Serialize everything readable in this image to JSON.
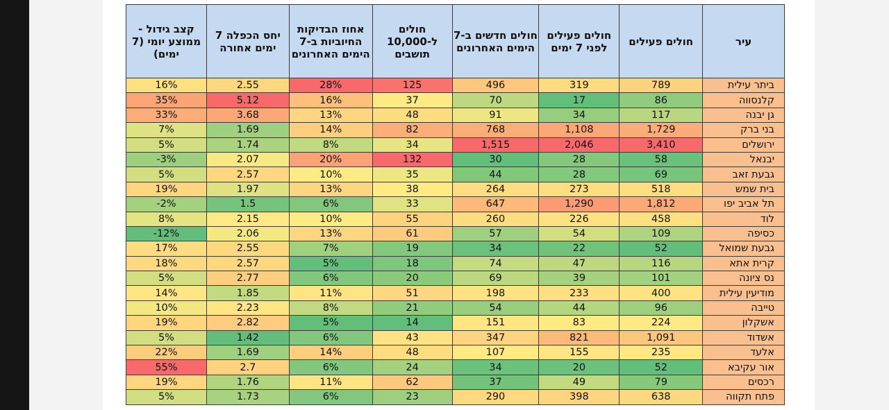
{
  "headers": [
    "עיר",
    "חולים פעילים",
    "חולים פעילים לפני 7 ימים",
    "חולים חדשים ב-7 הימים האחרונים",
    "חולים ל-10,000 תושבים",
    "אחוז הבדיקות החיוביות ב-7 הימים האחרונים",
    "יחס הכפלה 7 ימים אחורה",
    "קצב גידול - ממוצע יומי (7 ימים)"
  ],
  "rows": [
    {
      "city": "ביתר עילית",
      "active": "789",
      "active_prev": "319",
      "new7": "496",
      "per10k": "125",
      "pos_pct": "28%",
      "doubling": "2.55",
      "growth": "16%"
    },
    {
      "city": "קלנסווה",
      "active": "86",
      "active_prev": "17",
      "new7": "70",
      "per10k": "37",
      "pos_pct": "16%",
      "doubling": "5.12",
      "growth": "35%"
    },
    {
      "city": "גן יבנה",
      "active": "117",
      "active_prev": "34",
      "new7": "91",
      "per10k": "48",
      "pos_pct": "13%",
      "doubling": "3.68",
      "growth": "33%"
    },
    {
      "city": "בני ברק",
      "active": "1,729",
      "active_prev": "1,108",
      "new7": "768",
      "per10k": "82",
      "pos_pct": "14%",
      "doubling": "1.69",
      "growth": "7%"
    },
    {
      "city": "ירושלים",
      "active": "3,410",
      "active_prev": "2,046",
      "new7": "1,515",
      "per10k": "34",
      "pos_pct": "8%",
      "doubling": "1.74",
      "growth": "5%"
    },
    {
      "city": "יבנאל",
      "active": "58",
      "active_prev": "28",
      "new7": "30",
      "per10k": "132",
      "pos_pct": "20%",
      "doubling": "2.07",
      "growth": "3%-"
    },
    {
      "city": "גבעת זאב",
      "active": "69",
      "active_prev": "28",
      "new7": "44",
      "per10k": "35",
      "pos_pct": "10%",
      "doubling": "2.57",
      "growth": "5%"
    },
    {
      "city": "בית שמש",
      "active": "518",
      "active_prev": "273",
      "new7": "264",
      "per10k": "38",
      "pos_pct": "13%",
      "doubling": "1.97",
      "growth": "19%"
    },
    {
      "city": "תל אביב יפו",
      "active": "1,812",
      "active_prev": "1,290",
      "new7": "647",
      "per10k": "33",
      "pos_pct": "6%",
      "doubling": "1.5",
      "growth": "2%-"
    },
    {
      "city": "לוד",
      "active": "458",
      "active_prev": "226",
      "new7": "260",
      "per10k": "55",
      "pos_pct": "10%",
      "doubling": "2.15",
      "growth": "8%"
    },
    {
      "city": "כסיפה",
      "active": "109",
      "active_prev": "54",
      "new7": "57",
      "per10k": "61",
      "pos_pct": "13%",
      "doubling": "2.06",
      "growth": "12%-"
    },
    {
      "city": "גבעת שמואל",
      "active": "52",
      "active_prev": "22",
      "new7": "34",
      "per10k": "19",
      "pos_pct": "7%",
      "doubling": "2.55",
      "growth": "17%"
    },
    {
      "city": "קרית אתא",
      "active": "116",
      "active_prev": "47",
      "new7": "74",
      "per10k": "18",
      "pos_pct": "5%",
      "doubling": "2.57",
      "growth": "18%"
    },
    {
      "city": "נס ציונה",
      "active": "101",
      "active_prev": "39",
      "new7": "69",
      "per10k": "20",
      "pos_pct": "6%",
      "doubling": "2.77",
      "growth": "5%"
    },
    {
      "city": "מודיעין עילית",
      "active": "400",
      "active_prev": "233",
      "new7": "198",
      "per10k": "51",
      "pos_pct": "11%",
      "doubling": "1.85",
      "growth": "14%"
    },
    {
      "city": "טייבה",
      "active": "96",
      "active_prev": "44",
      "new7": "54",
      "per10k": "21",
      "pos_pct": "8%",
      "doubling": "2.23",
      "growth": "10%"
    },
    {
      "city": "אשקלון",
      "active": "224",
      "active_prev": "83",
      "new7": "151",
      "per10k": "14",
      "pos_pct": "5%",
      "doubling": "2.82",
      "growth": "19%"
    },
    {
      "city": "אשדוד",
      "active": "1,091",
      "active_prev": "821",
      "new7": "347",
      "per10k": "43",
      "pos_pct": "6%",
      "doubling": "1.42",
      "growth": "5%"
    },
    {
      "city": "אלעד",
      "active": "235",
      "active_prev": "155",
      "new7": "107",
      "per10k": "48",
      "pos_pct": "14%",
      "doubling": "1.69",
      "growth": "22%"
    },
    {
      "city": "אור עקיבא",
      "active": "52",
      "active_prev": "20",
      "new7": "34",
      "per10k": "24",
      "pos_pct": "6%",
      "doubling": "2.7",
      "growth": "55%"
    },
    {
      "city": "רכסים",
      "active": "79",
      "active_prev": "49",
      "new7": "37",
      "per10k": "62",
      "pos_pct": "11%",
      "doubling": "1.76",
      "growth": "19%"
    },
    {
      "city": "פתח תקווה",
      "active": "638",
      "active_prev": "398",
      "new7": "290",
      "per10k": "23",
      "pos_pct": "6%",
      "doubling": "1.73",
      "growth": "5%"
    }
  ],
  "colors": {
    "header_bg": "#c5d9f1",
    "city_bg": "#fabf8f",
    "scale_low": "#63be7b",
    "scale_mid": "#ffeb84",
    "scale_high": "#f8696b",
    "grid": "#3a3a3a"
  }
}
